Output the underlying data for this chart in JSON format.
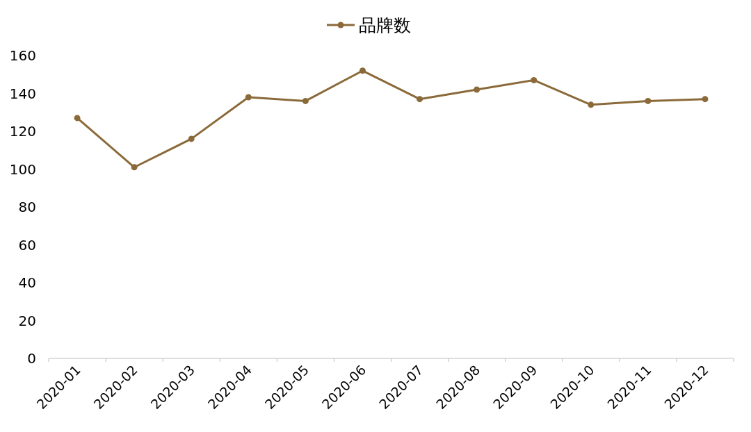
{
  "chart_data": {
    "type": "line",
    "categories": [
      "2020-01",
      "2020-02",
      "2020-03",
      "2020-04",
      "2020-05",
      "2020-06",
      "2020-07",
      "2020-08",
      "2020-09",
      "2020-10",
      "2020-11",
      "2020-12"
    ],
    "series": [
      {
        "name": "品牌数",
        "color": "#8b6a3a",
        "values": [
          127,
          101,
          116,
          138,
          136,
          152,
          137,
          142,
          147,
          134,
          136,
          137
        ]
      }
    ],
    "ylim": [
      0,
      160
    ],
    "yticks": [
      0,
      20,
      40,
      60,
      80,
      100,
      120,
      140,
      160
    ],
    "marker": "circle",
    "legend": "top",
    "grid": false
  }
}
